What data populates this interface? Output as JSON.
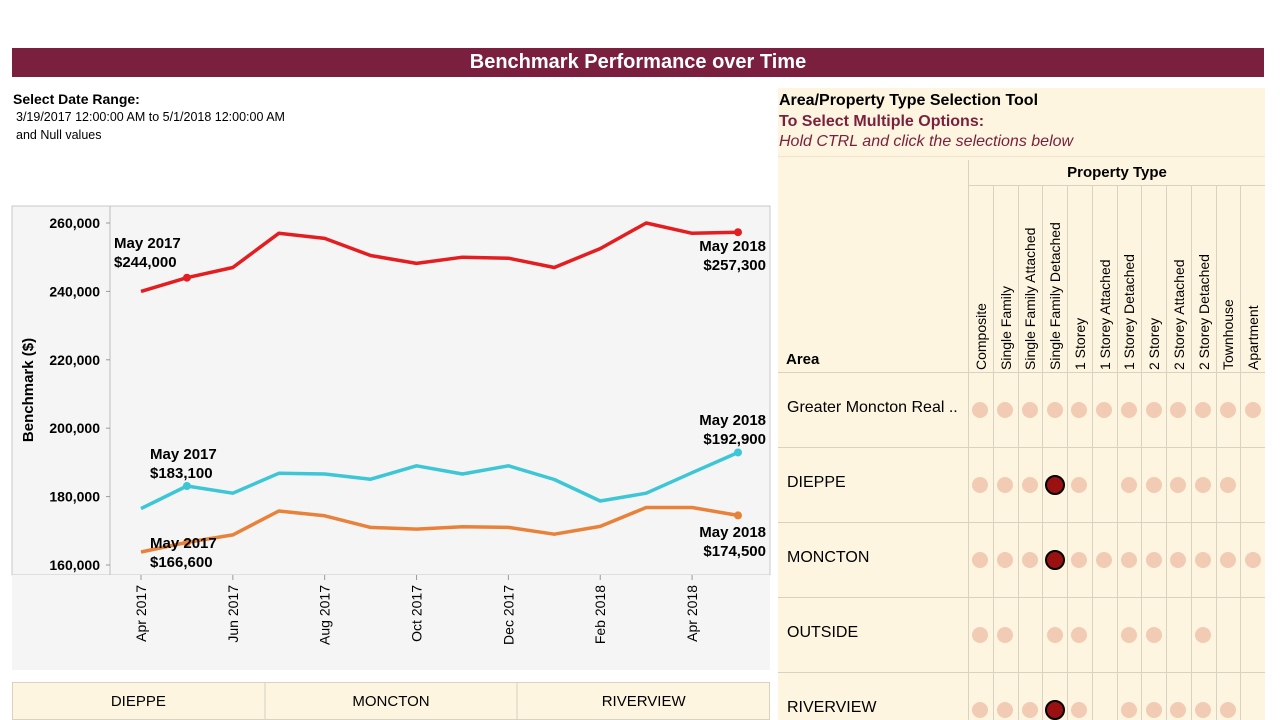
{
  "title": "Benchmark Performance over Time",
  "date_filter": {
    "label": "Select Date Range:",
    "range": "3/19/2017 12:00:00 AM to 5/1/2018 12:00:00 AM",
    "null_note": "and Null values"
  },
  "chart_data": {
    "type": "line",
    "ylabel": "Benchmark ($)",
    "xlabel": "",
    "ylim": [
      160000,
      260000
    ],
    "y_ticks": [
      "260,000",
      "240,000",
      "220,000",
      "200,000",
      "180,000",
      "160,000"
    ],
    "x": [
      "2017-04",
      "2017-05",
      "2017-06",
      "2017-07",
      "2017-08",
      "2017-09",
      "2017-10",
      "2017-11",
      "2017-12",
      "2018-01",
      "2018-02",
      "2018-03",
      "2018-04",
      "2018-05"
    ],
    "x_ticks": [
      "Apr 2017",
      "Jun 2017",
      "Aug 2017",
      "Oct 2017",
      "Dec 2017",
      "Feb 2018",
      "Apr 2018"
    ],
    "series": [
      {
        "color": "#e41e20",
        "values": [
          240000,
          244000,
          247000,
          257000,
          255500,
          250500,
          248200,
          250000,
          249700,
          247000,
          252500,
          260000,
          257000,
          257300
        ]
      },
      {
        "color": "#3cc6d6",
        "values": [
          176500,
          183100,
          181000,
          186800,
          186600,
          185100,
          189000,
          186600,
          189000,
          185000,
          178700,
          181000,
          187000,
          192900
        ]
      },
      {
        "color": "#e8823a",
        "values": [
          163800,
          166600,
          168800,
          175800,
          174400,
          171000,
          170500,
          171200,
          171000,
          169000,
          171300,
          176800,
          176800,
          174500
        ]
      }
    ],
    "annotations": [
      {
        "series": 0,
        "index": 1,
        "line1": "May 2017",
        "line2": "$244,000"
      },
      {
        "series": 0,
        "index": 13,
        "line1": "May 2018",
        "line2": "$257,300"
      },
      {
        "series": 1,
        "index": 1,
        "line1": "May 2017",
        "line2": "$183,100"
      },
      {
        "series": 1,
        "index": 13,
        "line1": "May 2018",
        "line2": "$192,900"
      },
      {
        "series": 2,
        "index": 1,
        "line1": "May 2017",
        "line2": "$166,600"
      },
      {
        "series": 2,
        "index": 13,
        "line1": "May 2018",
        "line2": "$174,500"
      }
    ],
    "grid": false,
    "background": "#f5f5f5"
  },
  "legend": {
    "items": [
      "DIEPPE",
      "MONCTON",
      "RIVERVIEW"
    ]
  },
  "selection_tool": {
    "title": "Area/Property Type Selection Tool",
    "subtitle": "To Select Multiple Options:",
    "hint": "Hold CTRL and click the selections below",
    "column_group": "Property Type",
    "row_header": "Area",
    "columns": [
      "Composite",
      "Single Family",
      "Single Family Attached",
      "Single Family Detached",
      "1 Storey",
      "1 Storey Attached",
      "1 Storey Detached",
      "2 Storey",
      "2 Storey Attached",
      "2 Storey Detached",
      "Townhouse",
      "Apartment"
    ],
    "rows": [
      {
        "label": "Greater Moncton Real ..",
        "cells": [
          "dot",
          "dot",
          "dot",
          "dot",
          "dot",
          "dot",
          "dot",
          "dot",
          "dot",
          "dot",
          "dot",
          "dot"
        ]
      },
      {
        "label": "DIEPPE",
        "cells": [
          "dot",
          "dot",
          "dot",
          "selected",
          "dot",
          "",
          "dot",
          "dot",
          "dot",
          "dot",
          "dot",
          ""
        ]
      },
      {
        "label": "MONCTON",
        "cells": [
          "dot",
          "dot",
          "dot",
          "selected",
          "dot",
          "dot",
          "dot",
          "dot",
          "dot",
          "dot",
          "dot",
          "dot"
        ]
      },
      {
        "label": "OUTSIDE",
        "cells": [
          "dot",
          "dot",
          "",
          "dot",
          "dot",
          "",
          "dot",
          "dot",
          "",
          "dot",
          "",
          ""
        ]
      },
      {
        "label": "RIVERVIEW",
        "cells": [
          "dot",
          "dot",
          "dot",
          "selected",
          "dot",
          "",
          "dot",
          "dot",
          "dot",
          "dot",
          "dot",
          ""
        ]
      }
    ],
    "colors": {
      "dot": "#f2cbb5",
      "selected": "#9b1010",
      "panel": "#fdf5df",
      "title_bar": "#7a1f3d"
    }
  }
}
